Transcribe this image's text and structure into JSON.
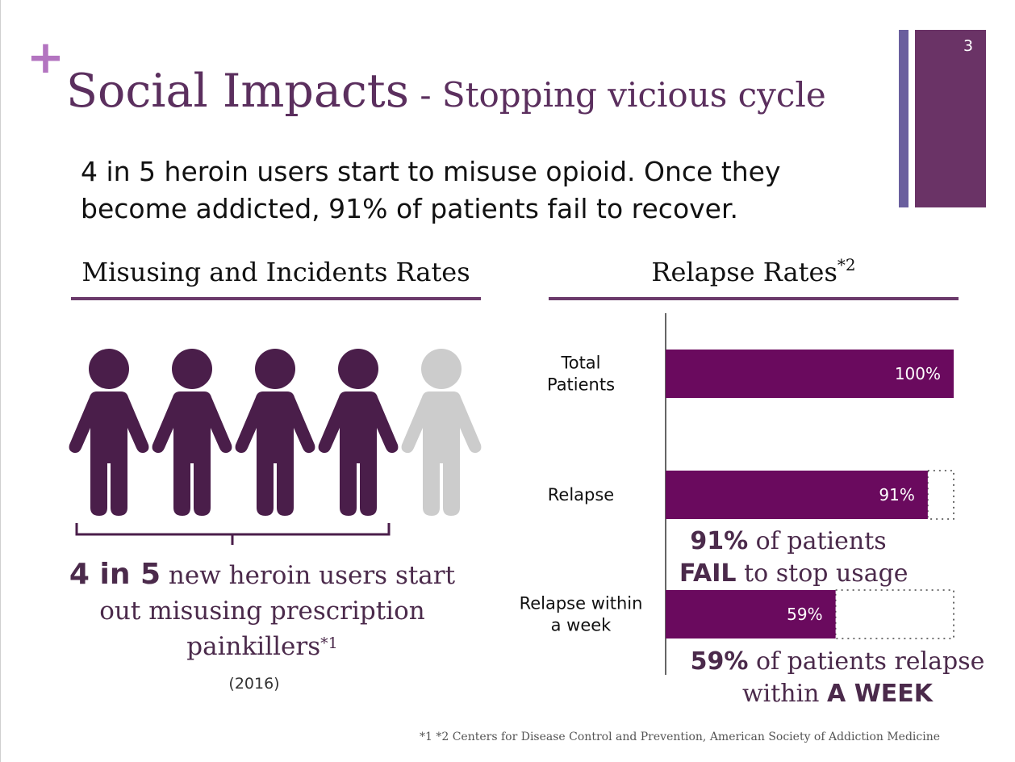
{
  "slide": {
    "plus": "+",
    "title_main": "Social Impacts",
    "title_sub": " - Stopping vicious cycle",
    "number": "3",
    "headline": "4 in 5 heroin users start to misuse opioid. Once they become addicted, 91% of patients fail to recover."
  },
  "left": {
    "title": "Misusing and Incidents Rates",
    "people_total": 5,
    "people_highlighted": 4,
    "colors": {
      "highlight": "#4a1e4a",
      "muted": "#cccccc"
    },
    "caption_big": "4 in 5",
    "caption_rest": " new heroin users start out misusing prescription painkillers",
    "caption_sup": "*1",
    "year": "(2016)"
  },
  "right": {
    "title": "Relapse Rates",
    "title_sup": "*2",
    "note1_big": "91%",
    "note1_rest": " of patients",
    "note1_bold": "FAIL",
    "note1_end": " to stop usage",
    "note2_big": "59%",
    "note2_rest": " of patients relapse",
    "note2_pre": "within ",
    "note2_bold": "A WEEK"
  },
  "chart_data": {
    "type": "bar",
    "orientation": "horizontal",
    "categories": [
      "Total Patients",
      "Relapse",
      "Relapse within a week"
    ],
    "category_lines": [
      [
        "Total",
        "Patients"
      ],
      [
        "Relapse"
      ],
      [
        "Relapse within",
        "a week"
      ]
    ],
    "values": [
      100,
      91,
      59
    ],
    "value_labels": [
      "100%",
      "91%",
      "59%"
    ],
    "xlim": [
      0,
      100
    ],
    "bar_color": "#6a0a5e",
    "remainder_style": "dotted"
  },
  "footnote": "*1 *2  Centers for Disease Control and Prevention, American Society of Addiction Medicine"
}
